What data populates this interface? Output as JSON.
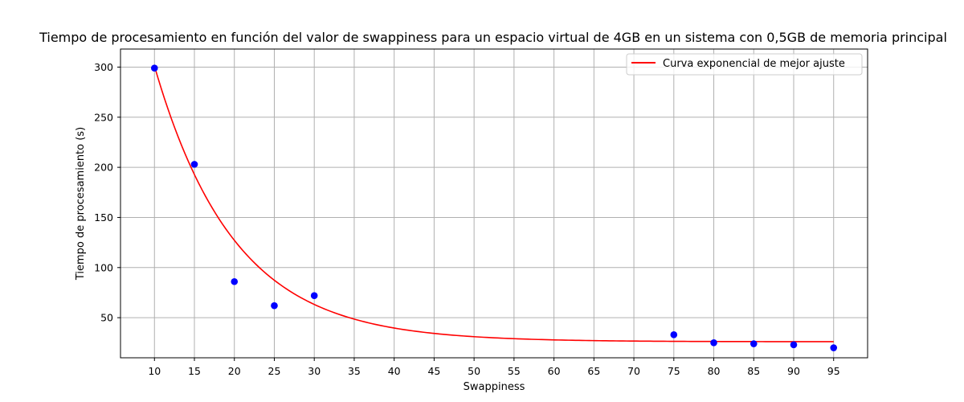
{
  "chart_data": {
    "type": "scatter",
    "title": "Tiempo de procesamiento en función del valor de swappiness para un espacio virtual de 4GB en un sistema con 0,5GB de memoria principal",
    "xlabel": "Swappiness",
    "ylabel": "Tiempo de procesamiento (s)",
    "xlim": [
      5.75,
      99.25
    ],
    "ylim": [
      10,
      318
    ],
    "x_ticks": [
      10,
      15,
      20,
      25,
      30,
      35,
      40,
      45,
      50,
      55,
      60,
      65,
      70,
      75,
      80,
      85,
      90,
      95
    ],
    "y_ticks": [
      50,
      100,
      150,
      200,
      250,
      300
    ],
    "grid": true,
    "legend_position": "top-right",
    "series": [
      {
        "kind": "scatter",
        "color": "#0000ff",
        "points": [
          {
            "x": 10,
            "y": 299
          },
          {
            "x": 15,
            "y": 203
          },
          {
            "x": 20,
            "y": 86
          },
          {
            "x": 25,
            "y": 62
          },
          {
            "x": 30,
            "y": 72
          },
          {
            "x": 75,
            "y": 33
          },
          {
            "x": 80,
            "y": 25
          },
          {
            "x": 85,
            "y": 24
          },
          {
            "x": 90,
            "y": 23
          },
          {
            "x": 95,
            "y": 20
          }
        ]
      },
      {
        "kind": "line",
        "name": "Curva exponencial de mejor ajuste",
        "color": "#ff0000",
        "model": {
          "form": "a*exp(-b*(x-10))+c",
          "a": 275,
          "b": 0.1,
          "c": 26
        },
        "x_range": [
          10,
          95
        ]
      }
    ]
  }
}
